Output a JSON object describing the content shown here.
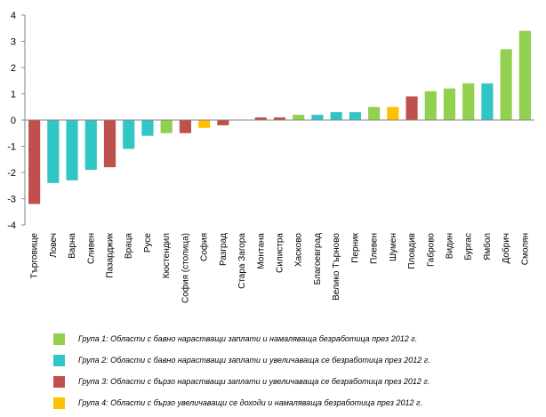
{
  "chart_data": {
    "type": "bar",
    "title": "",
    "xlabel": "",
    "ylabel": "",
    "ylim": [
      -4,
      4
    ],
    "yticks": [
      -4,
      -3,
      -2,
      -1,
      0,
      1,
      2,
      3,
      4
    ],
    "grid": false,
    "legend_position": "bottom",
    "colors": {
      "g1": "#92d050",
      "g2": "#31c6c6",
      "g3": "#c0504d",
      "g4": "#ffc000"
    },
    "categories": [
      "Търговище",
      "Ловеч",
      "Варна",
      "Сливен",
      "Пазарджик",
      "Враца",
      "Русе",
      "Кюстендил",
      "София (столица)",
      "София",
      "Разград",
      "Стара Загора",
      "Монтана",
      "Силистра",
      "Хасково",
      "Благоевград",
      "Велико Търново",
      "Перник",
      "Плевен",
      "Шумен",
      "Пловдив",
      "Габрово",
      "Видин",
      "Бургас",
      "Ямбол",
      "Добрич",
      "Смолян"
    ],
    "values": [
      -3.2,
      -2.4,
      -2.3,
      -1.9,
      -1.8,
      -1.1,
      -0.6,
      -0.5,
      -0.5,
      -0.3,
      -0.2,
      0,
      0.1,
      0.1,
      0.2,
      0.2,
      0.3,
      0.3,
      0.5,
      0.5,
      0.9,
      1.1,
      1.2,
      1.4,
      1.4,
      2.7,
      3.4
    ],
    "groups": [
      "g3",
      "g2",
      "g2",
      "g2",
      "g3",
      "g2",
      "g2",
      "g1",
      "g3",
      "g4",
      "g3",
      "g1",
      "g3",
      "g3",
      "g1",
      "g2",
      "g2",
      "g2",
      "g1",
      "g4",
      "g3",
      "g1",
      "g1",
      "g1",
      "g2",
      "g1",
      "g1"
    ],
    "legend": [
      {
        "group": "g1",
        "label": "Група 1: Области с бавно нарастващи заплати и намаляваща безработица през 2012 г."
      },
      {
        "group": "g2",
        "label": "Група 2: Области с бавно нарастващи заплати и увеличаваща се безработица през 2012 г."
      },
      {
        "group": "g3",
        "label": "Група 3: Области с бързо нарастващи заплати и увеличаваща се безработица през 2012 г."
      },
      {
        "group": "g4",
        "label": "Група 4: Области с бързо увеличаващи се доходи и намаляваща безработица през 2012 г."
      }
    ]
  }
}
